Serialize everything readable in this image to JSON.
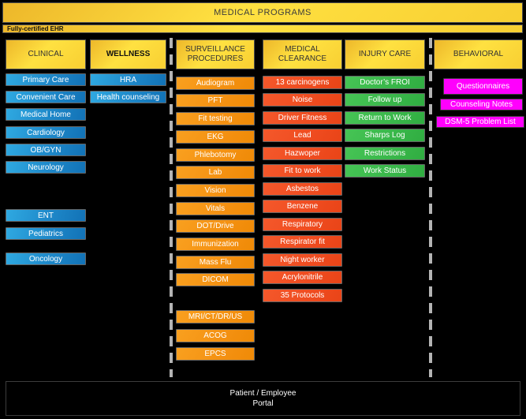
{
  "title": "MEDICAL PROGRAMS",
  "subtitle": "Fully-certified EHR",
  "portal": {
    "line1": "Patient / Employee",
    "line2": "Portal"
  },
  "colors": {
    "background": "#000000",
    "header_yellow": "#ffe141",
    "clinical_blue": "#1e88c9",
    "surveillance_orange": "#f7941e",
    "clearance_red": "#f04e23",
    "injury_green": "#39b74a",
    "behavioral_magenta": "#ff00fd",
    "portal_blue": "#2093d1",
    "separator_gray": "#b4b4b4"
  },
  "columns": [
    {
      "id": "clinical",
      "header": "CLINICAL",
      "items": [
        "Primary Care",
        "Convenient Care",
        "Medical Home",
        "Cardiology",
        "OB/GYN",
        "Neurology",
        "ENT",
        "Pediatrics",
        "Oncology"
      ]
    },
    {
      "id": "wellness",
      "header": "WELLNESS",
      "items": [
        "HRA",
        "Health counseling"
      ]
    },
    {
      "id": "surveillance",
      "header": "SURVEILLANCE PROCEDURES",
      "items": [
        "Audiogram",
        "PFT",
        "Fit testing",
        "EKG",
        "Phlebotomy",
        "Lab",
        "Vision",
        "Vitals",
        "DOT/Drive",
        "Immunization",
        "Mass Flu",
        "DICOM",
        "MRI/CT/DR/US",
        "ACOG",
        "EPCS"
      ]
    },
    {
      "id": "clearance",
      "header": "MEDICAL CLEARANCE",
      "items": [
        "13 carcinogens",
        "Noise",
        "Driver Fitness",
        "Lead",
        "Hazwoper",
        "Fit to work",
        "Asbestos",
        "Benzene",
        "Respiratory",
        "Respirator fit",
        "Night worker",
        "Acrylonitrile",
        "35 Protocols"
      ]
    },
    {
      "id": "injury",
      "header": "INJURY CARE",
      "items": [
        "Doctor’s FROI",
        "Follow up",
        "Return to Work",
        "Sharps Log",
        "Restrictions",
        "Work Status"
      ]
    },
    {
      "id": "behavioral",
      "header": "BEHAVIORAL",
      "items": [
        "Questionnaires",
        "Counseling Notes",
        "DSM-5 Problem List"
      ]
    }
  ]
}
